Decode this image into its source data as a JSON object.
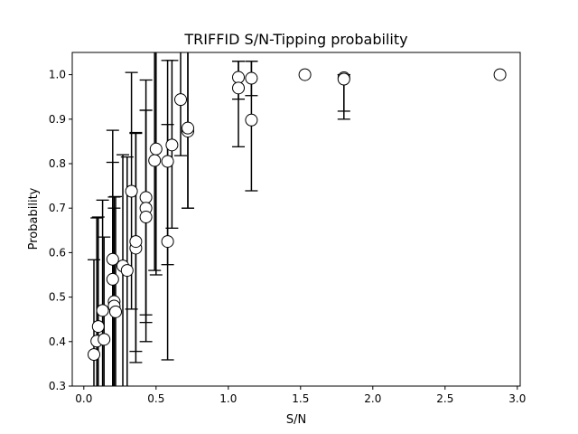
{
  "chart_data": {
    "type": "scatter",
    "title": "TRIFFID S/N-Tipping probability",
    "xlabel": "S/N",
    "ylabel": "Probability",
    "xlim": [
      -0.08,
      3.02
    ],
    "ylim": [
      0.3,
      1.05
    ],
    "xticks": [
      "0.0",
      "0.5",
      "1.0",
      "1.5",
      "2.0",
      "2.5",
      "3.0"
    ],
    "yticks": [
      "0.3",
      "0.4",
      "0.5",
      "0.6",
      "0.7",
      "0.8",
      "0.9",
      "1.0"
    ],
    "grid": false,
    "marker_color": "#ffffff",
    "edge_color": "#000000",
    "points": [
      {
        "x": 0.07,
        "y": 0.371,
        "lo": 0.15,
        "hi": 0.584
      },
      {
        "x": 0.09,
        "y": 0.401,
        "lo": 0.15,
        "hi": 0.678
      },
      {
        "x": 0.1,
        "y": 0.434,
        "lo": 0.15,
        "hi": 0.68
      },
      {
        "x": 0.13,
        "y": 0.47,
        "lo": 0.15,
        "hi": 0.718
      },
      {
        "x": 0.14,
        "y": 0.405,
        "lo": 0.15,
        "hi": 0.635
      },
      {
        "x": 0.2,
        "y": 0.585,
        "lo": 0.25,
        "hi": 0.875
      },
      {
        "x": 0.2,
        "y": 0.54,
        "lo": 0.25,
        "hi": 0.803
      },
      {
        "x": 0.21,
        "y": 0.49,
        "lo": 0.25,
        "hi": 0.725
      },
      {
        "x": 0.21,
        "y": 0.48,
        "lo": 0.25,
        "hi": 0.7
      },
      {
        "x": 0.22,
        "y": 0.467,
        "lo": 0.25,
        "hi": 0.726
      },
      {
        "x": 0.27,
        "y": 0.57,
        "lo": 0.25,
        "hi": 0.82
      },
      {
        "x": 0.3,
        "y": 0.56,
        "lo": 0.25,
        "hi": 0.815
      },
      {
        "x": 0.33,
        "y": 0.738,
        "lo": 0.473,
        "hi": 1.005
      },
      {
        "x": 0.36,
        "y": 0.61,
        "lo": 0.378,
        "hi": 0.87
      },
      {
        "x": 0.36,
        "y": 0.625,
        "lo": 0.353,
        "hi": 0.868
      },
      {
        "x": 0.43,
        "y": 0.724,
        "lo": 0.46,
        "hi": 0.988
      },
      {
        "x": 0.43,
        "y": 0.7,
        "lo": 0.443,
        "hi": 0.92
      },
      {
        "x": 0.43,
        "y": 0.68,
        "lo": 0.4,
        "hi": 0.92
      },
      {
        "x": 0.49,
        "y": 0.807,
        "lo": 0.56,
        "hi": 1.06
      },
      {
        "x": 0.5,
        "y": 0.833,
        "lo": 0.55,
        "hi": 1.06
      },
      {
        "x": 0.58,
        "y": 0.805,
        "lo": 0.573,
        "hi": 1.032
      },
      {
        "x": 0.58,
        "y": 0.625,
        "lo": 0.359,
        "hi": 0.888
      },
      {
        "x": 0.61,
        "y": 0.842,
        "lo": 0.655,
        "hi": 1.032
      },
      {
        "x": 0.67,
        "y": 0.944,
        "lo": 0.818,
        "hi": 1.06
      },
      {
        "x": 0.72,
        "y": 0.873,
        "lo": 0.7,
        "hi": 1.06
      },
      {
        "x": 0.72,
        "y": 0.88,
        "lo": 0.7,
        "hi": 1.06
      },
      {
        "x": 1.07,
        "y": 0.994,
        "lo": 0.945,
        "hi": 1.03
      },
      {
        "x": 1.07,
        "y": 0.97,
        "lo": 0.838,
        "hi": 1.03
      },
      {
        "x": 1.16,
        "y": 0.992,
        "lo": 0.953,
        "hi": 1.03
      },
      {
        "x": 1.16,
        "y": 0.898,
        "lo": 0.739,
        "hi": 1.03
      },
      {
        "x": 1.53,
        "y": 1.0,
        "lo": 1.0,
        "hi": 1.0
      },
      {
        "x": 1.8,
        "y": 0.993,
        "lo": 0.9,
        "hi": 1.0
      },
      {
        "x": 1.8,
        "y": 0.99,
        "lo": 0.918,
        "hi": 1.0
      },
      {
        "x": 2.88,
        "y": 1.0,
        "lo": 1.0,
        "hi": 1.0
      }
    ]
  }
}
